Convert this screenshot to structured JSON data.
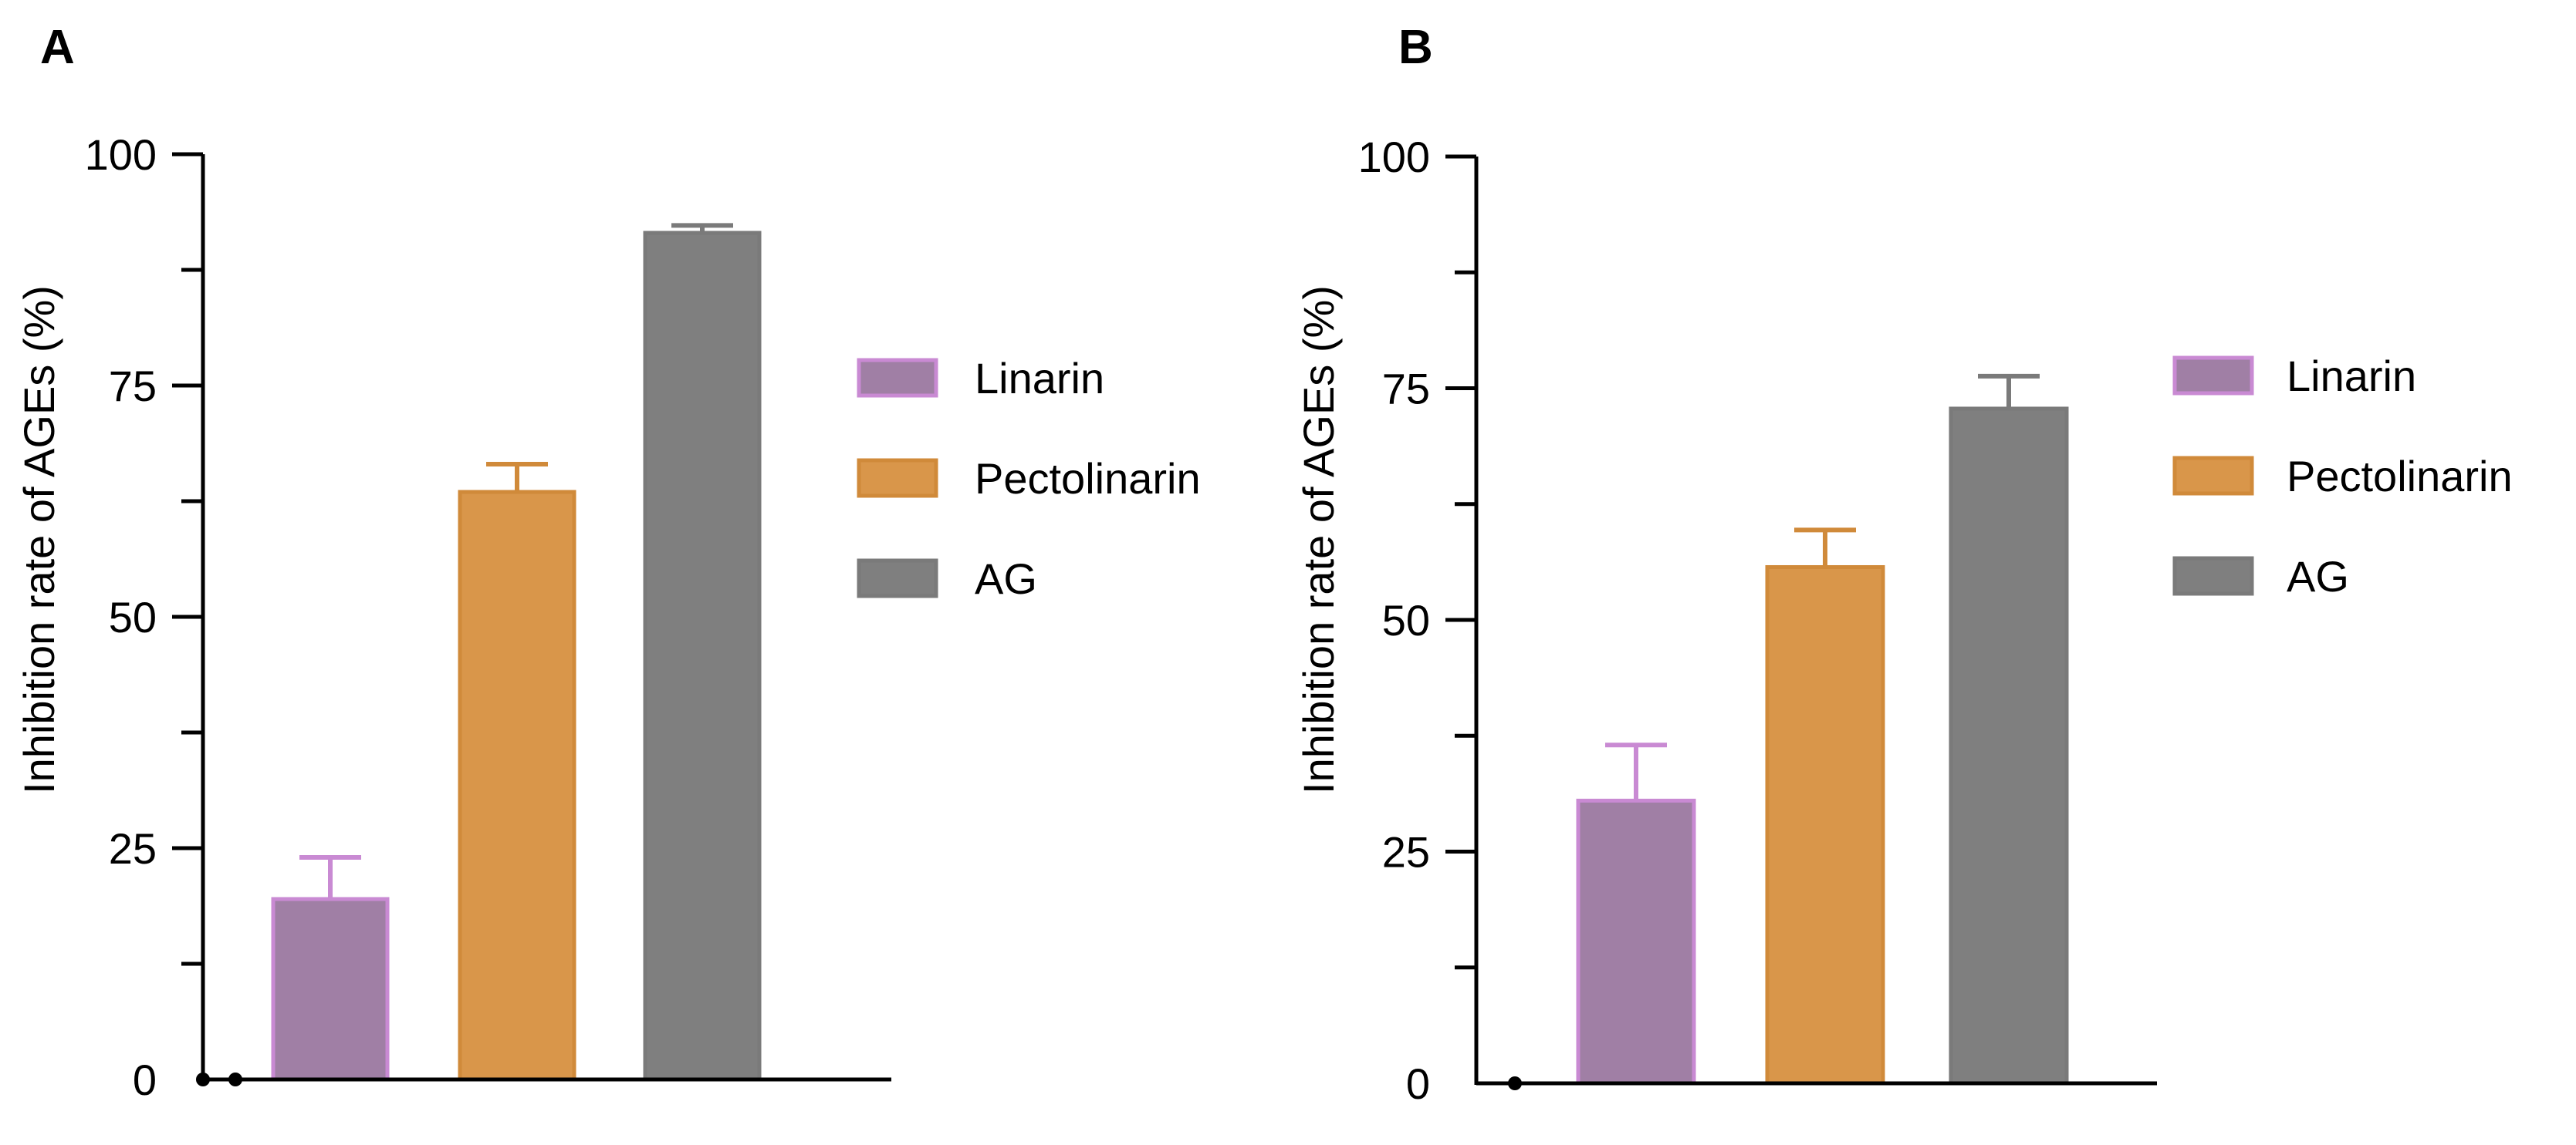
{
  "chart_data": [
    {
      "type": "bar",
      "panel_label": "A",
      "categories": [
        "Linarin",
        "Pectolinarin",
        "AG"
      ],
      "values": [
        19.5,
        63.5,
        91.5
      ],
      "errors": [
        4.5,
        3.0,
        0.8
      ],
      "ylabel": "Inhibition rate of AGEs (%)",
      "ylim": [
        0,
        100
      ],
      "yticks": [
        0,
        25,
        50,
        75,
        100
      ],
      "ytick_labels": [
        "0",
        "25",
        "50",
        "75",
        "100"
      ],
      "legend": [
        "Linarin",
        "Pectolinarin",
        "AG"
      ],
      "legend_position": "right",
      "grid": false
    },
    {
      "type": "bar",
      "panel_label": "B",
      "categories": [
        "Linarin",
        "Pectolinarin",
        "AG"
      ],
      "values": [
        30.5,
        55.7,
        72.8
      ],
      "errors": [
        6.0,
        4.0,
        3.5
      ],
      "ylabel": "Inhibition rate of AGEs (%)",
      "ylim": [
        0,
        100
      ],
      "yticks": [
        0,
        25,
        50,
        75,
        100
      ],
      "ytick_labels": [
        "0",
        "25",
        "50",
        "75",
        "100"
      ],
      "legend": [
        "Linarin",
        "Pectolinarin",
        "AG"
      ],
      "legend_position": "right",
      "grid": false
    }
  ],
  "colors": {
    "Linarin": "#a07fa5",
    "Linarin_edge": "#c98ad3",
    "Pectolinarin": "#d9964a",
    "Pectolinarin_edge": "#d08a3a",
    "AG": "#7f7f7f",
    "AG_edge": "#7a7a7a",
    "axis": "#000000",
    "text": "#000000"
  }
}
